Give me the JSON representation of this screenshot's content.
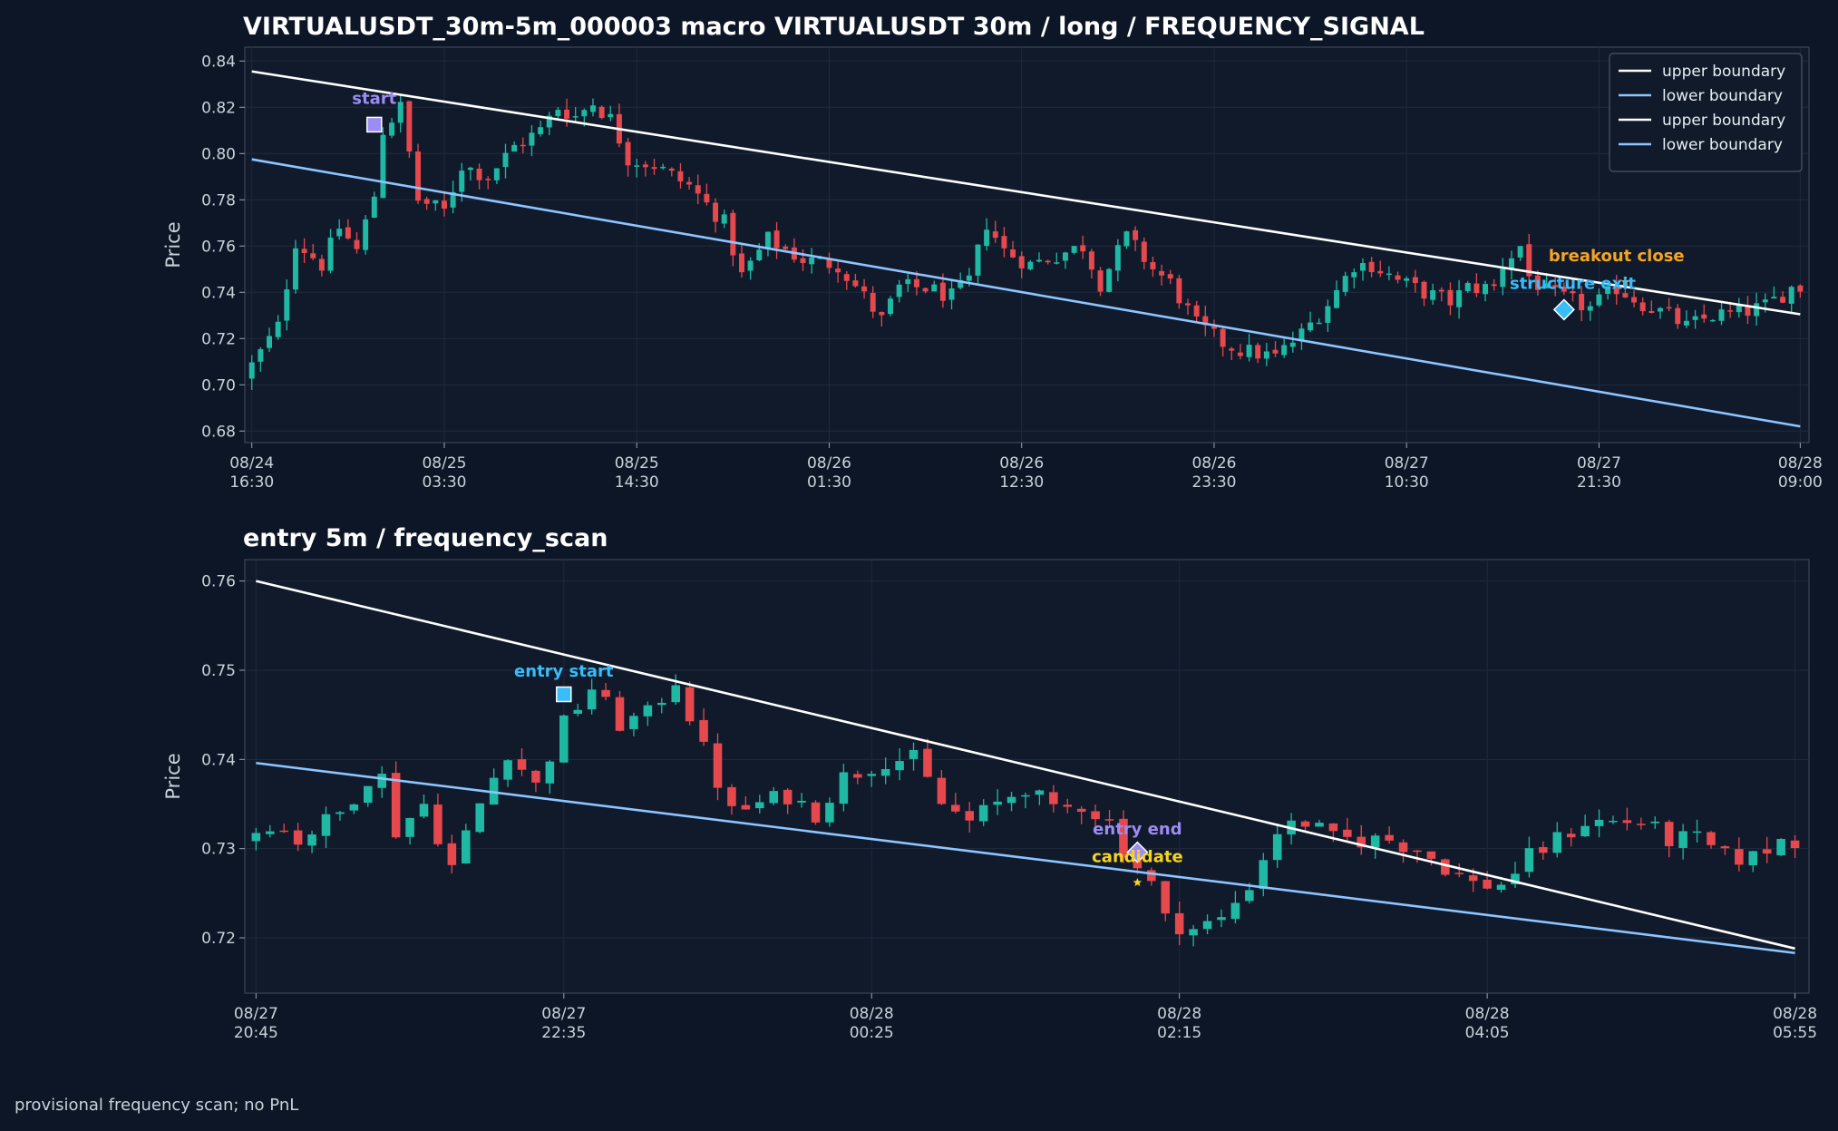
{
  "footer_note": "provisional frequency scan; no PnL",
  "colors": {
    "background": "#0d1626",
    "panel": "#111a2b",
    "up_candle": "#1fb8a3",
    "down_candle": "#e5484d",
    "upper_boundary": "#ffffff",
    "lower_boundary": "#8ec5ff",
    "start_marker": "#9d8cf5",
    "entry_start": "#38bdf8",
    "breakout_label": "#f5a524",
    "candidate_label": "#f5d423"
  },
  "chart_data": [
    {
      "type": "candlestick",
      "title": "VIRTUALUSDT_30m-5m_000003 macro VIRTUALUSDT 30m / long / FREQUENCY_SIGNAL",
      "xlabel": "",
      "ylabel": "Price",
      "ylim": [
        0.675,
        0.846
      ],
      "yticks": [
        0.68,
        0.7,
        0.72,
        0.74,
        0.76,
        0.78,
        0.8,
        0.82,
        0.84
      ],
      "ytick_labels": [
        "0.68",
        "0.70",
        "0.72",
        "0.74",
        "0.76",
        "0.78",
        "0.80",
        "0.82",
        "0.84"
      ],
      "xticks": [
        {
          "i": 0,
          "line1": "08/24",
          "line2": "16:30"
        },
        {
          "i": 22,
          "line1": "08/25",
          "line2": "03:30"
        },
        {
          "i": 44,
          "line1": "08/25",
          "line2": "14:30"
        },
        {
          "i": 66,
          "line1": "08/26",
          "line2": "01:30"
        },
        {
          "i": 88,
          "line1": "08/26",
          "line2": "12:30"
        },
        {
          "i": 110,
          "line1": "08/26",
          "line2": "23:30"
        },
        {
          "i": 132,
          "line1": "08/27",
          "line2": "10:30"
        },
        {
          "i": 154,
          "line1": "08/27",
          "line2": "21:30"
        },
        {
          "i": 177,
          "line1": "08/28",
          "line2": "09:00"
        }
      ],
      "xlim": [
        -0.8,
        178.0
      ],
      "grid": true,
      "legend_position": "top-right",
      "legend": [
        "upper boundary",
        "lower boundary",
        "upper boundary",
        "lower boundary"
      ],
      "anchors": [
        [
          0,
          0.703
        ],
        [
          4,
          0.725
        ],
        [
          6,
          0.762
        ],
        [
          9,
          0.752
        ],
        [
          11,
          0.768
        ],
        [
          13,
          0.758
        ],
        [
          15,
          0.782
        ],
        [
          16,
          0.81
        ],
        [
          18,
          0.82
        ],
        [
          20,
          0.78
        ],
        [
          23,
          0.775
        ],
        [
          25,
          0.795
        ],
        [
          28,
          0.79
        ],
        [
          31,
          0.803
        ],
        [
          34,
          0.81
        ],
        [
          36,
          0.82
        ],
        [
          38,
          0.816
        ],
        [
          40,
          0.822
        ],
        [
          42,
          0.815
        ],
        [
          44,
          0.798
        ],
        [
          47,
          0.795
        ],
        [
          51,
          0.786
        ],
        [
          55,
          0.77
        ],
        [
          57,
          0.747
        ],
        [
          60,
          0.763
        ],
        [
          64,
          0.754
        ],
        [
          68,
          0.752
        ],
        [
          71,
          0.738
        ],
        [
          73,
          0.728
        ],
        [
          75,
          0.742
        ],
        [
          78,
          0.742
        ],
        [
          81,
          0.738
        ],
        [
          83,
          0.745
        ],
        [
          85,
          0.77
        ],
        [
          87,
          0.758
        ],
        [
          90,
          0.752
        ],
        [
          93,
          0.756
        ],
        [
          96,
          0.76
        ],
        [
          98,
          0.744
        ],
        [
          101,
          0.764
        ],
        [
          104,
          0.75
        ],
        [
          106,
          0.744
        ],
        [
          109,
          0.726
        ],
        [
          112,
          0.718
        ],
        [
          114,
          0.715
        ],
        [
          118,
          0.712
        ],
        [
          121,
          0.722
        ],
        [
          124,
          0.735
        ],
        [
          127,
          0.752
        ],
        [
          129,
          0.752
        ],
        [
          132,
          0.745
        ],
        [
          135,
          0.74
        ],
        [
          138,
          0.736
        ],
        [
          140,
          0.742
        ],
        [
          143,
          0.742
        ],
        [
          144,
          0.752
        ],
        [
          146,
          0.76
        ],
        [
          147,
          0.747
        ],
        [
          149,
          0.74
        ],
        [
          152,
          0.736
        ],
        [
          154,
          0.733
        ],
        [
          157,
          0.742
        ],
        [
          160,
          0.735
        ],
        [
          163,
          0.73
        ],
        [
          165,
          0.725
        ],
        [
          168,
          0.73
        ],
        [
          171,
          0.731
        ],
        [
          174,
          0.734
        ],
        [
          177,
          0.742
        ]
      ],
      "series": [
        {
          "name": "upper boundary",
          "x": [
            0,
            177
          ],
          "y": [
            0.8355,
            0.7305
          ]
        },
        {
          "name": "lower boundary",
          "x": [
            0,
            177
          ],
          "y": [
            0.7975,
            0.682
          ]
        }
      ],
      "annotations": [
        {
          "text": "start",
          "x": 14,
          "y": 0.8215,
          "color": "#9d8cf5"
        },
        {
          "text": "breakout close",
          "x": 156,
          "y": 0.7535,
          "color": "#f5a524"
        },
        {
          "text": "structure exit",
          "x": 151,
          "y": 0.7415,
          "color": "#38bdf8"
        }
      ],
      "markers": [
        {
          "shape": "square",
          "x": 14,
          "y": 0.8125,
          "color": "#9d8cf5"
        },
        {
          "shape": "diamond",
          "x": 150,
          "y": 0.7325,
          "color": "#38bdf8"
        },
        {
          "shape": "star",
          "x": 157,
          "y": 0.7445,
          "color": "#f5a524"
        }
      ]
    },
    {
      "type": "candlestick",
      "title": "entry 5m / frequency_scan",
      "xlabel": "",
      "ylabel": "Price",
      "ylim": [
        0.7138,
        0.7624
      ],
      "yticks": [
        0.72,
        0.73,
        0.74,
        0.75,
        0.76
      ],
      "ytick_labels": [
        "0.72",
        "0.73",
        "0.74",
        "0.75",
        "0.76"
      ],
      "xticks": [
        {
          "i": 0,
          "line1": "08/27",
          "line2": "20:45"
        },
        {
          "i": 22,
          "line1": "08/27",
          "line2": "22:35"
        },
        {
          "i": 44,
          "line1": "08/28",
          "line2": "00:25"
        },
        {
          "i": 66,
          "line1": "08/28",
          "line2": "02:15"
        },
        {
          "i": 88,
          "line1": "08/28",
          "line2": "04:05"
        },
        {
          "i": 110,
          "line1": "08/28",
          "line2": "05:55"
        }
      ],
      "xlim": [
        -0.8,
        111.0
      ],
      "grid": true,
      "anchors": [
        [
          0,
          0.731
        ],
        [
          2,
          0.733
        ],
        [
          4,
          0.731
        ],
        [
          7,
          0.734
        ],
        [
          9,
          0.738
        ],
        [
          10,
          0.738
        ],
        [
          11,
          0.732
        ],
        [
          13,
          0.735
        ],
        [
          15,
          0.728
        ],
        [
          17,
          0.735
        ],
        [
          19,
          0.741
        ],
        [
          21,
          0.737
        ],
        [
          23,
          0.744
        ],
        [
          25,
          0.748
        ],
        [
          27,
          0.744
        ],
        [
          29,
          0.745
        ],
        [
          31,
          0.749
        ],
        [
          33,
          0.741
        ],
        [
          35,
          0.734
        ],
        [
          37,
          0.735
        ],
        [
          39,
          0.736
        ],
        [
          41,
          0.734
        ],
        [
          43,
          0.738
        ],
        [
          46,
          0.74
        ],
        [
          48,
          0.74
        ],
        [
          50,
          0.735
        ],
        [
          52,
          0.733
        ],
        [
          54,
          0.735
        ],
        [
          56,
          0.737
        ],
        [
          58,
          0.734
        ],
        [
          60,
          0.735
        ],
        [
          62,
          0.733
        ],
        [
          63,
          0.73
        ],
        [
          65,
          0.726
        ],
        [
          66,
          0.722
        ],
        [
          68,
          0.721
        ],
        [
          70,
          0.722
        ],
        [
          72,
          0.726
        ],
        [
          74,
          0.732
        ],
        [
          76,
          0.733
        ],
        [
          78,
          0.731
        ],
        [
          80,
          0.731
        ],
        [
          82,
          0.731
        ],
        [
          84,
          0.73
        ],
        [
          86,
          0.728
        ],
        [
          88,
          0.726
        ],
        [
          90,
          0.726
        ],
        [
          92,
          0.729
        ],
        [
          94,
          0.731
        ],
        [
          96,
          0.733
        ],
        [
          98,
          0.733
        ],
        [
          100,
          0.733
        ],
        [
          102,
          0.731
        ],
        [
          104,
          0.731
        ],
        [
          106,
          0.729
        ],
        [
          108,
          0.729
        ],
        [
          110,
          0.731
        ]
      ],
      "series": [
        {
          "name": "upper boundary",
          "x": [
            0,
            110
          ],
          "y": [
            0.76,
            0.7188
          ]
        },
        {
          "name": "lower boundary",
          "x": [
            0,
            110
          ],
          "y": [
            0.7396,
            0.7183
          ]
        }
      ],
      "annotations": [
        {
          "text": "entry start",
          "x": 22,
          "y": 0.7493,
          "color": "#38bdf8"
        },
        {
          "text": "entry end",
          "x": 63,
          "y": 0.7316,
          "color": "#9d8cf5"
        },
        {
          "text": "candidate",
          "x": 63,
          "y": 0.7285,
          "color": "#f5d423"
        }
      ],
      "markers": [
        {
          "shape": "square",
          "x": 22,
          "y": 0.7473,
          "color": "#38bdf8"
        },
        {
          "shape": "diamond",
          "x": 63,
          "y": 0.7296,
          "color": "#9d8cf5"
        },
        {
          "shape": "star",
          "x": 63,
          "y": 0.7262,
          "color": "#f5d423"
        }
      ]
    }
  ]
}
